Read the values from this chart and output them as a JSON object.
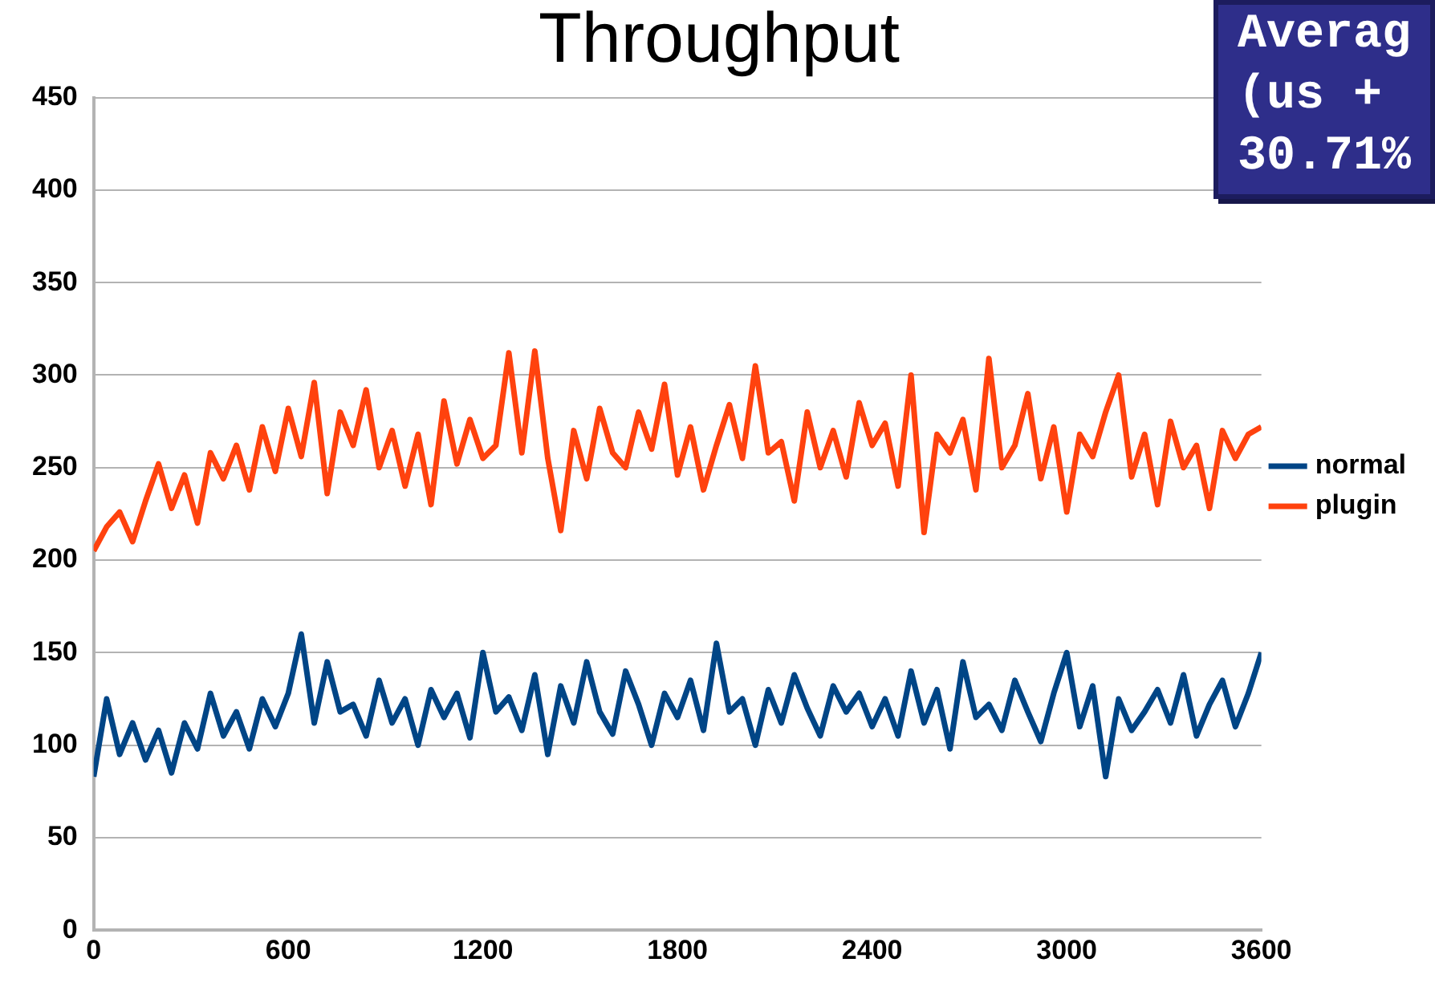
{
  "chart_data": {
    "type": "line",
    "title": "Throughput",
    "annotations": [
      "Averag",
      "(us +",
      "30.71%"
    ],
    "x": [
      0,
      40,
      80,
      120,
      160,
      200,
      240,
      280,
      320,
      360,
      400,
      440,
      480,
      520,
      560,
      600,
      640,
      680,
      720,
      760,
      800,
      840,
      880,
      920,
      960,
      1000,
      1040,
      1080,
      1120,
      1160,
      1200,
      1240,
      1280,
      1320,
      1360,
      1400,
      1440,
      1480,
      1520,
      1560,
      1600,
      1640,
      1680,
      1720,
      1760,
      1800,
      1840,
      1880,
      1920,
      1960,
      2000,
      2040,
      2080,
      2120,
      2160,
      2200,
      2240,
      2280,
      2320,
      2360,
      2400,
      2440,
      2480,
      2520,
      2560,
      2600,
      2640,
      2680,
      2720,
      2760,
      2800,
      2840,
      2880,
      2920,
      2960,
      3000,
      3040,
      3080,
      3120,
      3160,
      3200,
      3240,
      3280,
      3320,
      3360,
      3400,
      3440,
      3480,
      3520,
      3560,
      3600
    ],
    "series": [
      {
        "name": "normal",
        "color": "#004586",
        "values": [
          83,
          125,
          95,
          112,
          92,
          108,
          85,
          112,
          98,
          128,
          105,
          118,
          98,
          125,
          110,
          128,
          160,
          112,
          145,
          118,
          122,
          105,
          135,
          112,
          125,
          100,
          130,
          115,
          128,
          104,
          150,
          118,
          126,
          108,
          138,
          95,
          132,
          112,
          145,
          118,
          106,
          140,
          122,
          100,
          128,
          115,
          135,
          108,
          155,
          118,
          125,
          100,
          130,
          112,
          138,
          120,
          105,
          132,
          118,
          128,
          110,
          125,
          105,
          140,
          112,
          130,
          98,
          145,
          115,
          122,
          108,
          135,
          118,
          102,
          128,
          150,
          110,
          132,
          83,
          125,
          108,
          118,
          130,
          112,
          138,
          105,
          122,
          135,
          110,
          128,
          150
        ]
      },
      {
        "name": "plugin",
        "color": "#ff420e",
        "values": [
          205,
          218,
          226,
          210,
          232,
          252,
          228,
          246,
          220,
          258,
          244,
          262,
          238,
          272,
          248,
          282,
          256,
          296,
          236,
          280,
          262,
          292,
          250,
          270,
          240,
          268,
          230,
          286,
          252,
          276,
          255,
          262,
          312,
          258,
          313,
          255,
          216,
          270,
          244,
          282,
          258,
          250,
          280,
          260,
          295,
          246,
          272,
          238,
          262,
          284,
          255,
          305,
          258,
          264,
          232,
          280,
          250,
          270,
          245,
          285,
          262,
          274,
          240,
          300,
          215,
          268,
          258,
          276,
          238,
          309,
          250,
          262,
          290,
          244,
          272,
          226,
          268,
          256,
          280,
          300,
          245,
          268,
          230,
          275,
          250,
          262,
          228,
          270,
          255,
          268,
          272
        ]
      }
    ],
    "xlim": [
      0,
      3600
    ],
    "xticks": [
      0,
      600,
      1200,
      1800,
      2400,
      3000,
      3600
    ],
    "ylim": [
      0,
      450
    ],
    "yticks": [
      0,
      50,
      100,
      150,
      200,
      250,
      300,
      350,
      400,
      450
    ],
    "grid": "y",
    "legend": "right",
    "marker": "none",
    "line_style": "solid"
  }
}
